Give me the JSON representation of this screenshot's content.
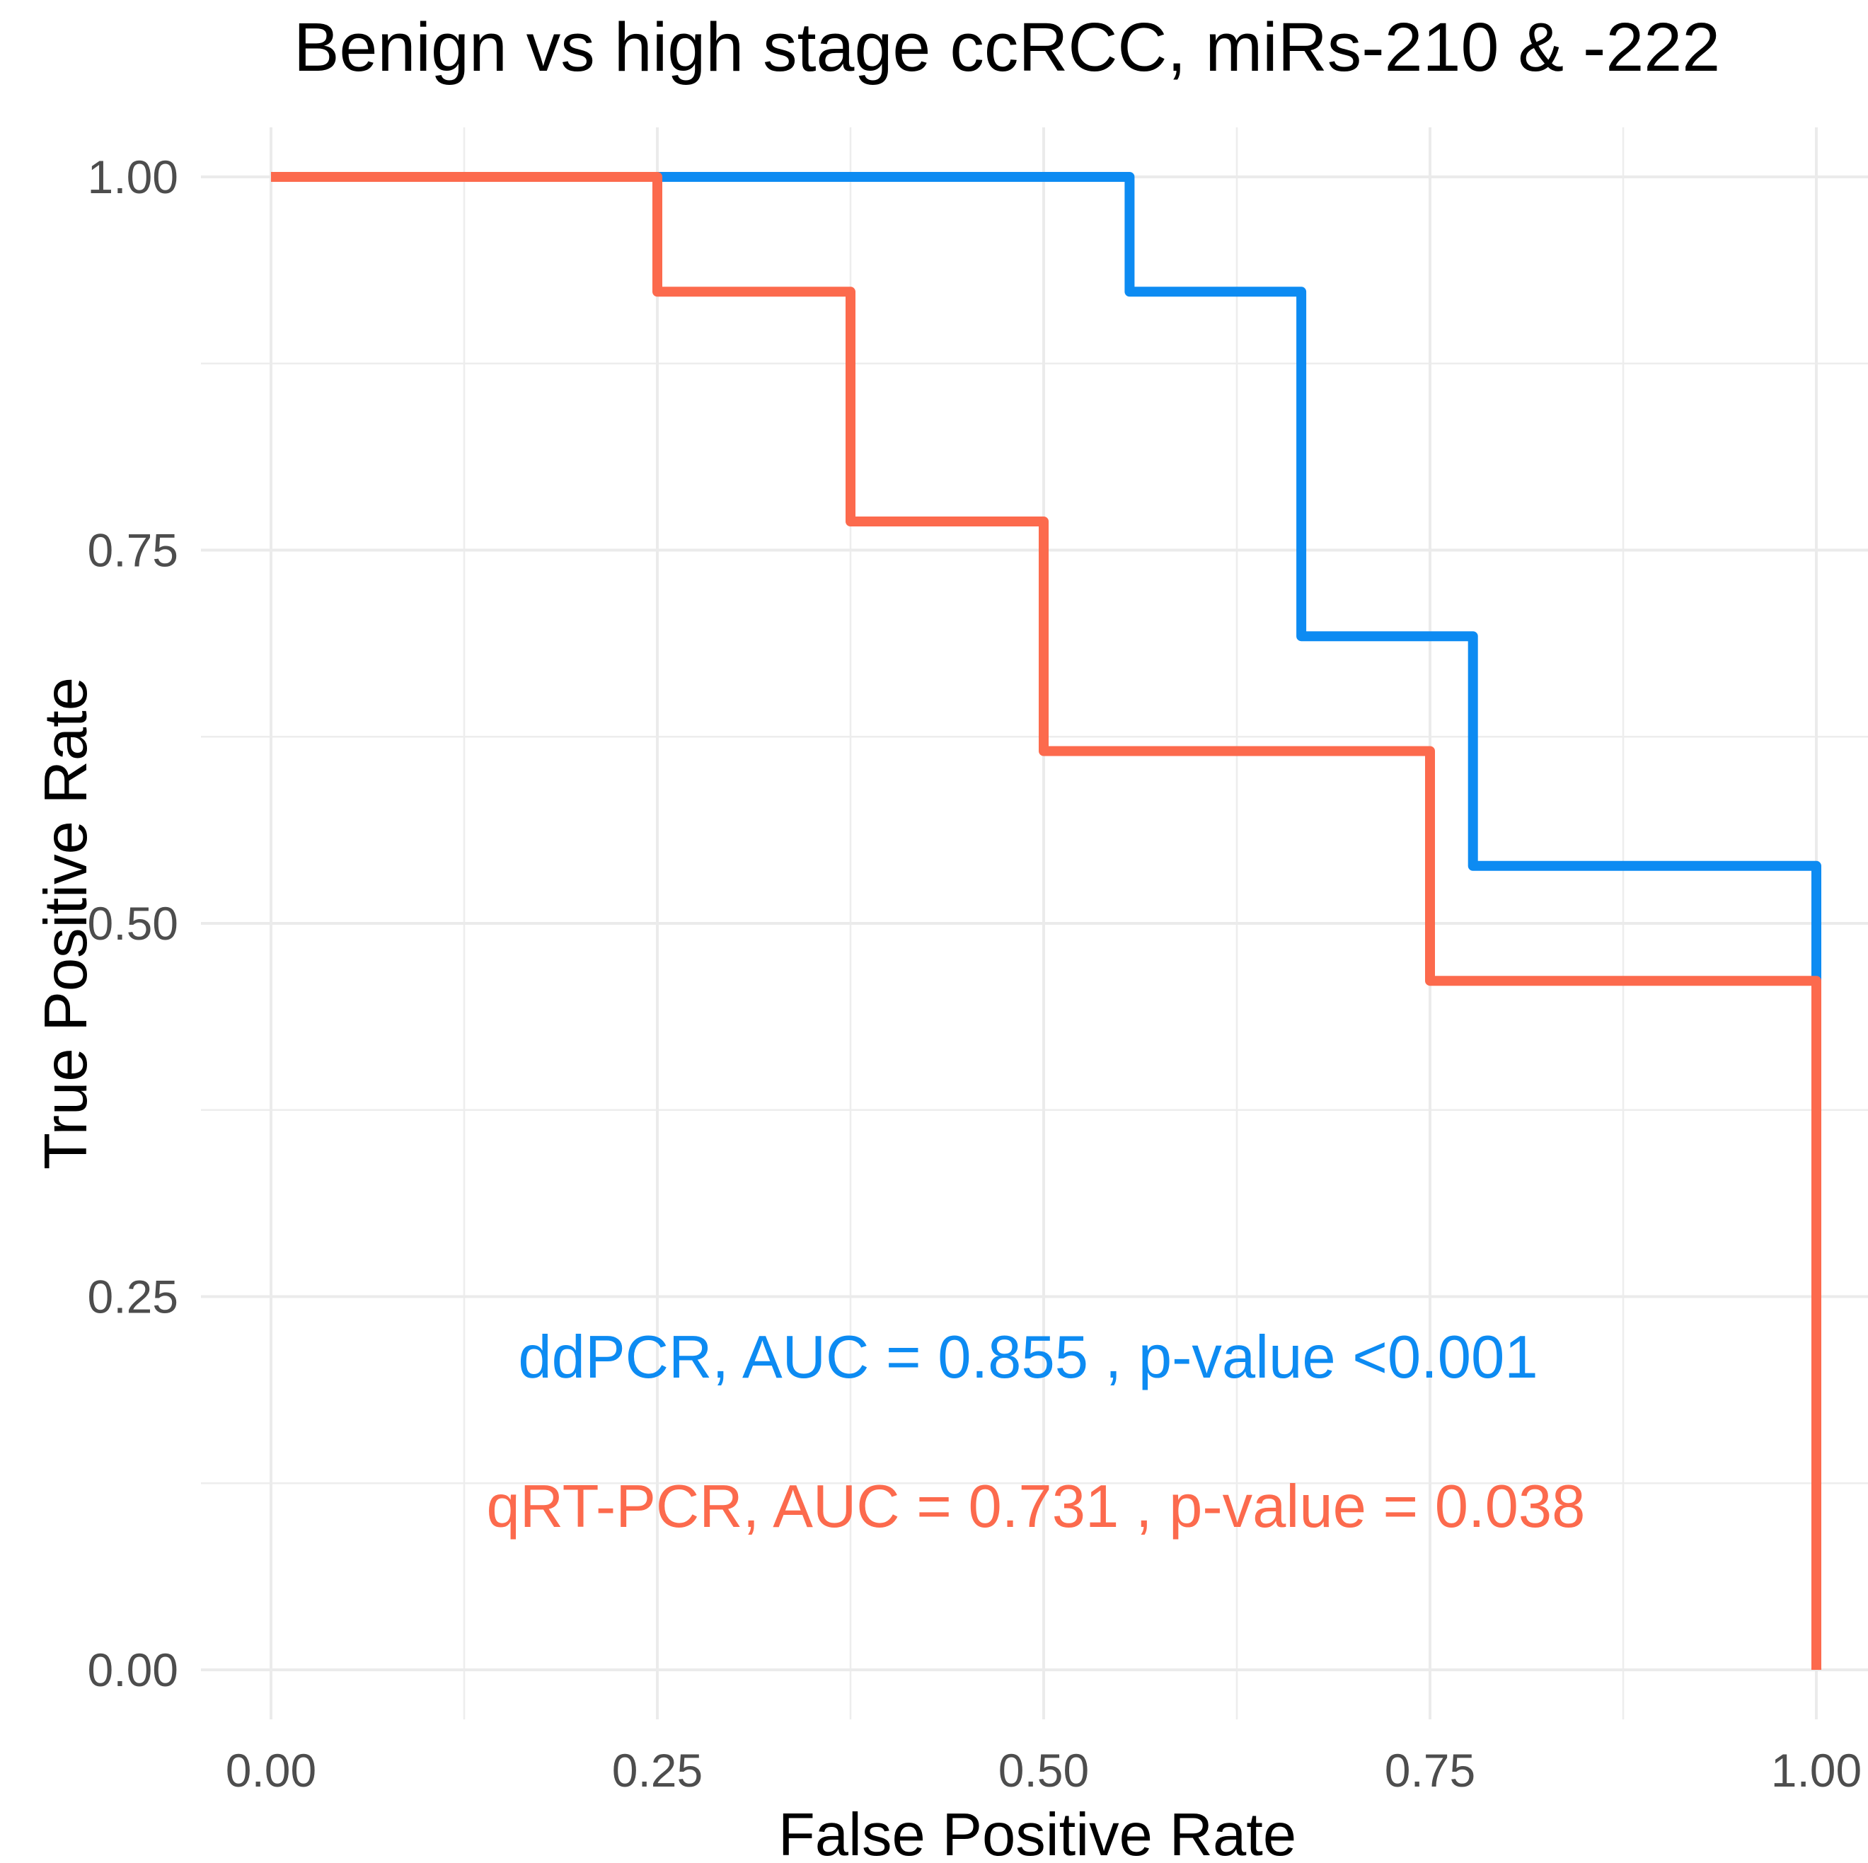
{
  "chart_data": {
    "type": "line",
    "subtype": "roc-step-curves",
    "title": "Benign vs high stage ccRCC, miRs-210 & -222",
    "xlabel": "False Positive Rate",
    "ylabel": "True Positive Rate",
    "xlim": [
      0,
      1
    ],
    "ylim": [
      0,
      1
    ],
    "grid": {
      "show": true,
      "major_color": "#ebebeb",
      "minor_color": "#ededed",
      "background": "#ffffff"
    },
    "legend_position": "none (colored in-plot annotations)",
    "xticks": {
      "values": [
        0,
        0.25,
        0.5,
        0.75,
        1
      ],
      "labels": [
        "0.00",
        "0.25",
        "0.50",
        "0.75",
        "1.00"
      ]
    },
    "yticks": {
      "values": [
        0,
        0.25,
        0.5,
        0.75,
        1
      ],
      "labels": [
        "0.00",
        "0.25",
        "0.50",
        "0.75",
        "1.00"
      ]
    },
    "minor_xticks": [
      0.125,
      0.375,
      0.625,
      0.875
    ],
    "minor_yticks": [
      0.125,
      0.375,
      0.625,
      0.875
    ],
    "tick_label_color": "#4d4d4d",
    "series": [
      {
        "name": "ddPCR",
        "color": "#0d8bf2",
        "auc": "0.855",
        "p_value": "<0.001",
        "annotation": "ddPCR, AUC = 0.855 , p-value <0.001",
        "annotation_xy": [
          0.49,
          0.21
        ],
        "points": [
          [
            0,
            1
          ],
          [
            0.5556,
            1
          ],
          [
            0.5556,
            0.9231
          ],
          [
            0.6667,
            0.9231
          ],
          [
            0.6667,
            0.6923
          ],
          [
            0.7778,
            0.6923
          ],
          [
            0.7778,
            0.5385
          ],
          [
            1,
            0.5385
          ],
          [
            1,
            0
          ]
        ]
      },
      {
        "name": "qRT-PCR",
        "color": "#fc6a4d",
        "auc": "0.731",
        "p_value": "= 0.038",
        "annotation": "qRT-PCR, AUC = 0.731 , p-value = 0.038",
        "annotation_xy": [
          0.495,
          0.11
        ],
        "points": [
          [
            0,
            1
          ],
          [
            0.25,
            1
          ],
          [
            0.25,
            0.9231
          ],
          [
            0.375,
            0.9231
          ],
          [
            0.375,
            0.7692
          ],
          [
            0.5,
            0.7692
          ],
          [
            0.5,
            0.6154
          ],
          [
            0.75,
            0.6154
          ],
          [
            0.75,
            0.4615
          ],
          [
            1,
            0.4615
          ],
          [
            1,
            0
          ]
        ]
      }
    ]
  }
}
